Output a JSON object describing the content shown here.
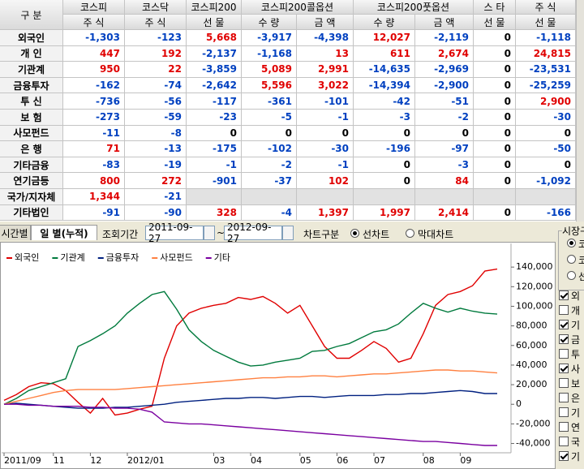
{
  "table": {
    "header": {
      "row1": [
        "구 분",
        "코스피",
        "코스닥",
        "코스피200",
        "코스피200콜옵션",
        "코스피200풋옵션",
        "스 타",
        "주 식"
      ],
      "row2": [
        "주 식",
        "주 식",
        "선 물",
        "수 량",
        "금 액",
        "수 량",
        "금 액",
        "선 물",
        "선 물"
      ]
    },
    "rows": [
      {
        "label": "외국인",
        "values": [
          "-1,303",
          "-123",
          "5,668",
          "-3,917",
          "-4,398",
          "12,027",
          "-2,119",
          "0",
          "-1,118"
        ]
      },
      {
        "label": "개 인",
        "values": [
          "447",
          "192",
          "-2,137",
          "-1,168",
          "13",
          "611",
          "2,674",
          "0",
          "24,815"
        ]
      },
      {
        "label": "기관계",
        "values": [
          "950",
          "22",
          "-3,859",
          "5,089",
          "2,991",
          "-14,635",
          "-2,969",
          "0",
          "-23,531"
        ]
      },
      {
        "label": "금융투자",
        "values": [
          "-162",
          "-74",
          "-2,642",
          "5,596",
          "3,022",
          "-14,394",
          "-2,900",
          "0",
          "-25,259"
        ]
      },
      {
        "label": "투 신",
        "values": [
          "-736",
          "-56",
          "-117",
          "-361",
          "-101",
          "-42",
          "-51",
          "0",
          "2,900"
        ]
      },
      {
        "label": "보 험",
        "values": [
          "-273",
          "-59",
          "-23",
          "-5",
          "-1",
          "-3",
          "-2",
          "0",
          "-30"
        ]
      },
      {
        "label": "사모펀드",
        "values": [
          "-11",
          "-8",
          "0",
          "0",
          "0",
          "0",
          "0",
          "0",
          "0"
        ]
      },
      {
        "label": "은 행",
        "values": [
          "71",
          "-13",
          "-175",
          "-102",
          "-30",
          "-196",
          "-97",
          "0",
          "-50"
        ]
      },
      {
        "label": "기타금융",
        "values": [
          "-83",
          "-19",
          "-1",
          "-2",
          "-1",
          "0",
          "-3",
          "0",
          "0"
        ]
      },
      {
        "label": "연기금등",
        "values": [
          "800",
          "272",
          "-901",
          "-37",
          "102",
          "0",
          "84",
          "0",
          "-1,092"
        ]
      },
      {
        "label": "국가/지자체",
        "values": [
          "1,344",
          "-21"
        ]
      },
      {
        "label": "기타법인",
        "values": [
          "-91",
          "-90",
          "328",
          "-4",
          "1,397",
          "1,997",
          "2,414",
          "0",
          "-166"
        ]
      }
    ]
  },
  "controls": {
    "tabs": [
      {
        "label": "시간별",
        "active": false
      },
      {
        "label": "일 별(누적)",
        "active": true
      }
    ],
    "period_label": "조회기간",
    "start_date": "2011-09-27",
    "separator": "~",
    "end_date": "2012-09-27",
    "chart_kind_label": "차트구분",
    "chart_kinds": [
      {
        "label": "선차트",
        "selected": true
      },
      {
        "label": "막대차트",
        "selected": false
      }
    ]
  },
  "side_panel": {
    "title": "시장구",
    "markets": [
      {
        "label": "코",
        "selected": true
      },
      {
        "label": "코",
        "selected": false
      },
      {
        "label": "선",
        "selected": false
      }
    ],
    "investors": [
      {
        "label": "외",
        "checked": true
      },
      {
        "label": "개",
        "checked": false
      },
      {
        "label": "기",
        "checked": true
      },
      {
        "label": "금",
        "checked": true
      },
      {
        "label": "투",
        "checked": false
      },
      {
        "label": "사",
        "checked": true
      },
      {
        "label": "보",
        "checked": false
      },
      {
        "label": "은",
        "checked": false
      },
      {
        "label": "기",
        "checked": false
      },
      {
        "label": "연",
        "checked": false
      },
      {
        "label": "국",
        "checked": false
      },
      {
        "label": "기",
        "checked": true
      }
    ]
  },
  "chart_data": {
    "type": "line",
    "categories": [
      "2011/09",
      null,
      null,
      null,
      "11",
      null,
      null,
      "12",
      null,
      null,
      "2012/01",
      null,
      null,
      null,
      null,
      null,
      null,
      "03",
      null,
      null,
      "04",
      null,
      null,
      null,
      "05",
      null,
      null,
      "06",
      null,
      null,
      "07",
      null,
      null,
      null,
      "08",
      null,
      null,
      "09",
      null,
      null,
      null
    ],
    "series": [
      {
        "name": "외국인",
        "color": "#e00000",
        "values": [
          4000,
          10000,
          18000,
          22000,
          21000,
          14000,
          2000,
          -9000,
          6000,
          -11000,
          -9000,
          -5000,
          -2000,
          47000,
          80000,
          93000,
          98000,
          101000,
          103000,
          109000,
          107000,
          110000,
          103000,
          93000,
          101000,
          80000,
          59000,
          47000,
          47000,
          55000,
          64000,
          57000,
          43000,
          47000,
          72000,
          101000,
          112000,
          115000,
          121000,
          136000,
          138000
        ]
      },
      {
        "name": "기관계",
        "color": "#007a3d",
        "values": [
          0,
          6000,
          14000,
          18000,
          22000,
          26000,
          59000,
          65000,
          72000,
          80000,
          93000,
          103000,
          112000,
          115000,
          97000,
          76000,
          64000,
          55000,
          49000,
          43000,
          39000,
          40000,
          43000,
          45000,
          47000,
          54000,
          55000,
          59000,
          62000,
          68000,
          74000,
          76000,
          82000,
          93000,
          103000,
          98000,
          94000,
          98000,
          95000,
          93000,
          92000
        ]
      },
      {
        "name": "금융투자",
        "color": "#002080",
        "values": [
          0,
          1000,
          0,
          -1000,
          -2000,
          -3000,
          -4000,
          -4000,
          -4000,
          -3000,
          -3000,
          -2000,
          -1000,
          0,
          2000,
          3000,
          4000,
          5000,
          6000,
          6000,
          7000,
          7000,
          6000,
          7000,
          8000,
          8000,
          7000,
          8000,
          9000,
          9000,
          9000,
          10000,
          10000,
          11000,
          11000,
          12000,
          13000,
          14000,
          13000,
          11000,
          11000
        ]
      },
      {
        "name": "사모펀드",
        "color": "#ff8040",
        "values": [
          0,
          3000,
          6000,
          9000,
          12000,
          14000,
          15000,
          15000,
          15000,
          15000,
          16000,
          17000,
          18000,
          19000,
          20000,
          21000,
          22000,
          23000,
          24000,
          25000,
          26000,
          27000,
          27000,
          28000,
          28000,
          29000,
          29000,
          28000,
          29000,
          30000,
          31000,
          31000,
          32000,
          33000,
          34000,
          35000,
          35000,
          34000,
          34000,
          33000,
          32000
        ]
      },
      {
        "name": "기타",
        "color": "#7a00a0",
        "values": [
          0,
          0,
          -1000,
          -1000,
          -2000,
          -2000,
          -2000,
          -3000,
          -3000,
          -4000,
          -4000,
          -5000,
          -8000,
          -18000,
          -19000,
          -20000,
          -20000,
          -21000,
          -22000,
          -23000,
          -24000,
          -25000,
          -26000,
          -27000,
          -28000,
          -29000,
          -30000,
          -31000,
          -32000,
          -33000,
          -34000,
          -35000,
          -36000,
          -37000,
          -38000,
          -38000,
          -39000,
          -40000,
          -41000,
          -42000,
          -42000
        ]
      }
    ],
    "ylim": [
      -47000,
      160000
    ],
    "yticks": [
      {
        "value": 140000,
        "label": "140,000"
      },
      {
        "value": 120000,
        "label": "120,000"
      },
      {
        "value": 100000,
        "label": "100,000"
      },
      {
        "value": 80000,
        "label": "80,000"
      },
      {
        "value": 60000,
        "label": "60,000"
      },
      {
        "value": 40000,
        "label": "40,000"
      },
      {
        "value": 20000,
        "label": "20,000"
      },
      0,
      {
        "value": -20000,
        "label": "-20,000"
      },
      {
        "value": -40000,
        "label": "-40,000"
      }
    ],
    "grid": false
  }
}
